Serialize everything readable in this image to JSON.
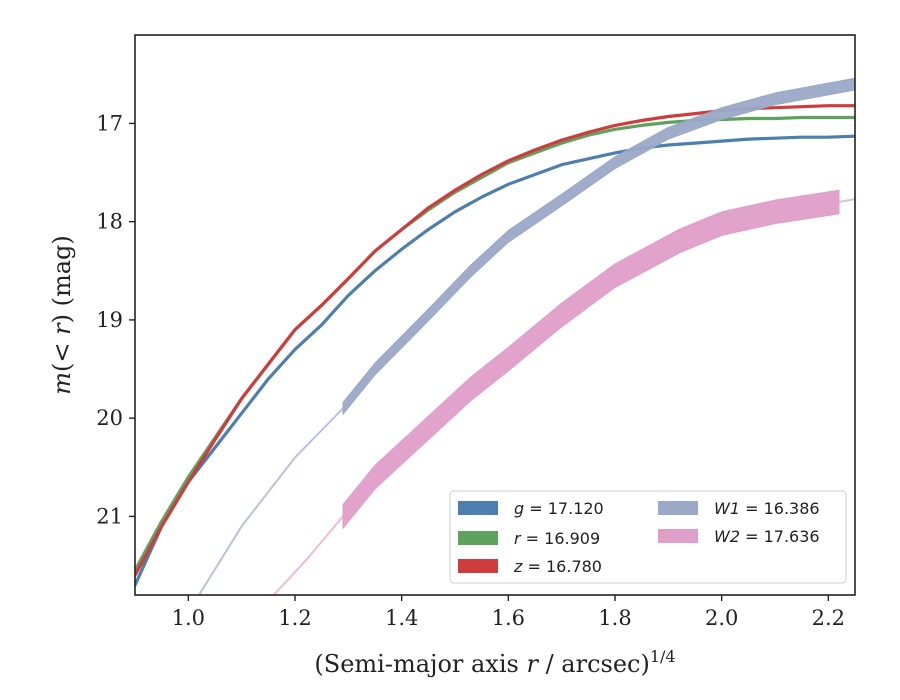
{
  "chart_data": {
    "type": "line",
    "xlabel": "(Semi-major axis r / arcsec)",
    "xlabel_parts": {
      "pre": "(Semi-major axis ",
      "var": "r",
      "post": " / arcsec)",
      "sup": "1/4"
    },
    "ylabel": "m(< r) (mag)",
    "ylabel_parts": {
      "var1": "m",
      "mid": "(< ",
      "var2": "r",
      "post": ") (mag)"
    },
    "xlim": [
      0.9,
      2.25
    ],
    "ylim": [
      21.8,
      16.1
    ],
    "y_inverted": true,
    "xticks": [
      "1.0",
      "1.2",
      "1.4",
      "1.6",
      "1.8",
      "2.0",
      "2.2"
    ],
    "yticks": [
      "17",
      "18",
      "19",
      "20",
      "21"
    ],
    "legend_position": "lower-right",
    "series": [
      {
        "name": "g = 17.120",
        "legend_var": "g",
        "legend_val": "= 17.120",
        "color": "#4c7fad",
        "x": [
          0.9,
          0.95,
          1.0,
          1.05,
          1.1,
          1.15,
          1.2,
          1.25,
          1.3,
          1.35,
          1.4,
          1.45,
          1.5,
          1.55,
          1.6,
          1.65,
          1.7,
          1.75,
          1.8,
          1.85,
          1.9,
          1.95,
          2.0,
          2.05,
          2.1,
          2.15,
          2.2,
          2.25
        ],
        "y": [
          21.7,
          21.1,
          20.65,
          20.3,
          19.95,
          19.6,
          19.3,
          19.05,
          18.75,
          18.5,
          18.28,
          18.08,
          17.9,
          17.75,
          17.62,
          17.52,
          17.42,
          17.36,
          17.3,
          17.25,
          17.22,
          17.2,
          17.18,
          17.16,
          17.15,
          17.14,
          17.14,
          17.13
        ]
      },
      {
        "name": "r = 16.909",
        "legend_var": "r",
        "legend_val": "= 16.909",
        "color": "#5ea25e",
        "x": [
          0.9,
          0.95,
          1.0,
          1.05,
          1.1,
          1.15,
          1.2,
          1.25,
          1.3,
          1.35,
          1.4,
          1.45,
          1.5,
          1.55,
          1.6,
          1.65,
          1.7,
          1.75,
          1.8,
          1.85,
          1.9,
          1.95,
          2.0,
          2.05,
          2.1,
          2.15,
          2.2,
          2.25
        ],
        "y": [
          21.55,
          21.05,
          20.6,
          20.2,
          19.8,
          19.45,
          19.1,
          18.85,
          18.58,
          18.3,
          18.08,
          17.88,
          17.7,
          17.55,
          17.4,
          17.3,
          17.2,
          17.12,
          17.06,
          17.02,
          16.99,
          16.97,
          16.96,
          16.95,
          16.95,
          16.94,
          16.94,
          16.94
        ]
      },
      {
        "name": "z = 16.780",
        "legend_var": "z",
        "legend_val": "= 16.780",
        "color": "#cf3c3c",
        "x": [
          0.9,
          0.95,
          1.0,
          1.05,
          1.1,
          1.15,
          1.2,
          1.25,
          1.3,
          1.35,
          1.4,
          1.45,
          1.5,
          1.55,
          1.6,
          1.65,
          1.7,
          1.75,
          1.8,
          1.85,
          1.9,
          1.95,
          2.0,
          2.05,
          2.1,
          2.15,
          2.2,
          2.25
        ],
        "y": [
          21.6,
          21.1,
          20.65,
          20.22,
          19.8,
          19.45,
          19.1,
          18.85,
          18.58,
          18.3,
          18.08,
          17.86,
          17.68,
          17.52,
          17.38,
          17.27,
          17.17,
          17.09,
          17.02,
          16.97,
          16.93,
          16.9,
          16.87,
          16.85,
          16.84,
          16.83,
          16.82,
          16.82
        ]
      },
      {
        "name": "W1 = 16.386",
        "legend_var": "W1",
        "legend_val": "= 16.386",
        "color": "#9aa9c8",
        "extrap_x": [
          1.02,
          1.1,
          1.2,
          1.29
        ],
        "extrap_y": [
          21.8,
          21.1,
          20.4,
          19.9
        ],
        "x": [
          1.29,
          1.35,
          1.45,
          1.53,
          1.6,
          1.7,
          1.8,
          1.9,
          2.0,
          2.1,
          2.2,
          2.25
        ],
        "y": [
          19.9,
          19.5,
          18.95,
          18.5,
          18.15,
          17.78,
          17.4,
          17.1,
          16.9,
          16.75,
          16.65,
          16.6
        ],
        "band": 0.06
      },
      {
        "name": "W2 = 17.636",
        "legend_var": "W2",
        "legend_val": "= 17.636",
        "color": "#df9ec8",
        "extrap_x": [
          1.16,
          1.22,
          1.29
        ],
        "extrap_y": [
          21.8,
          21.45,
          21.0
        ],
        "x": [
          1.29,
          1.35,
          1.45,
          1.53,
          1.6,
          1.7,
          1.8,
          1.92,
          2.0,
          2.1,
          2.22
        ],
        "y": [
          21.0,
          20.6,
          20.1,
          19.7,
          19.4,
          18.95,
          18.55,
          18.2,
          18.02,
          17.9,
          17.8
        ],
        "extrap_end_x": [
          2.22,
          2.25
        ],
        "extrap_end_y": [
          17.8,
          17.77
        ],
        "band": 0.12
      }
    ]
  }
}
